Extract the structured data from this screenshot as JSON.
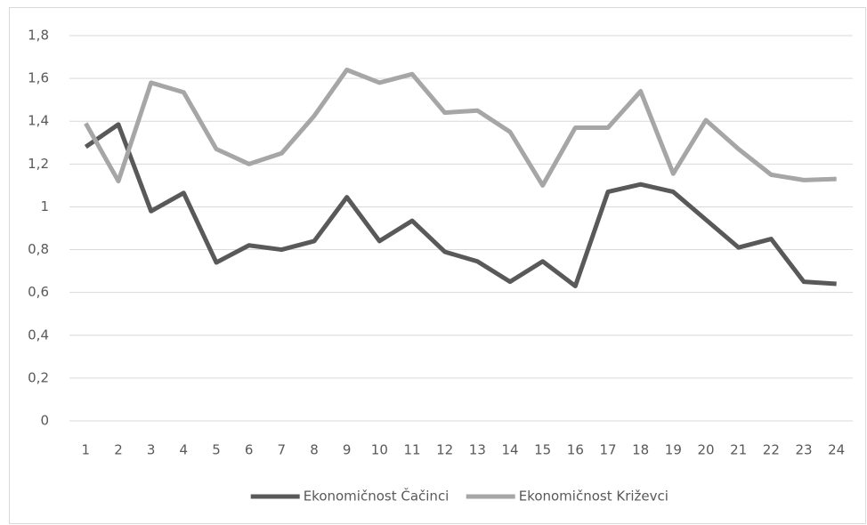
{
  "chart_data": {
    "type": "line",
    "categories": [
      "1",
      "2",
      "3",
      "4",
      "5",
      "6",
      "7",
      "8",
      "9",
      "10",
      "11",
      "12",
      "13",
      "14",
      "15",
      "16",
      "17",
      "18",
      "19",
      "20",
      "21",
      "22",
      "23",
      "24"
    ],
    "series": [
      {
        "name": "Ekonomičnost Čačinci",
        "color": "#595959",
        "values": [
          1.28,
          1.385,
          0.98,
          1.065,
          0.74,
          0.82,
          0.8,
          0.84,
          1.045,
          0.84,
          0.935,
          0.79,
          0.745,
          0.65,
          0.745,
          0.63,
          1.07,
          1.105,
          1.07,
          0.94,
          0.81,
          0.85,
          0.65,
          0.64
        ]
      },
      {
        "name": "Ekonomičnost Križevci",
        "color": "#a6a6a6",
        "values": [
          1.39,
          1.12,
          1.58,
          1.535,
          1.27,
          1.2,
          1.25,
          1.425,
          1.64,
          1.58,
          1.62,
          1.44,
          1.45,
          1.35,
          1.1,
          1.37,
          1.37,
          1.54,
          1.155,
          1.405,
          1.27,
          1.15,
          1.125,
          1.13
        ]
      }
    ],
    "ylim": [
      0,
      1.8
    ],
    "yticks": [
      0,
      {
        "value": 0.2,
        "label": "0,2"
      },
      {
        "value": 0.4,
        "label": "0,4"
      },
      {
        "value": 0.6,
        "label": "0,6"
      },
      {
        "value": 0.8,
        "label": "0,8"
      },
      1,
      {
        "value": 1.2,
        "label": "1,2"
      },
      {
        "value": 1.4,
        "label": "1,4"
      },
      {
        "value": 1.6,
        "label": "1,6"
      },
      {
        "value": 1.8,
        "label": "1,8"
      }
    ],
    "grid": true,
    "legend": "bottom"
  }
}
